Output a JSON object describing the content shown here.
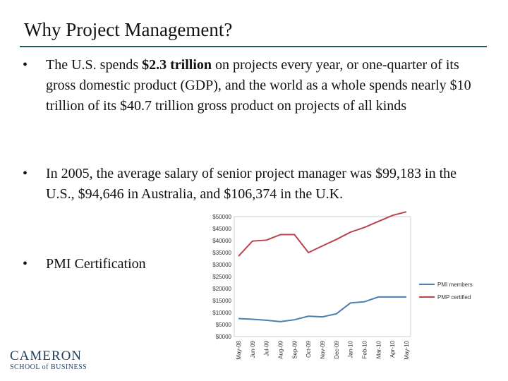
{
  "slide": {
    "title": "Why Project Management?",
    "bullets": [
      {
        "pre": "The U.S. spends ",
        "bold": "$2.3 trillion",
        "post": " on projects every year, or one-quarter of its gross domestic product (GDP), and the world as a whole spends nearly $10 trillion of its $40.7 trillion gross product on projects of all kinds"
      },
      {
        "text": "In 2005, the average salary of senior project manager was $99,183 in the U.S., $94,646 in Australia, and $106,374 in the U.K."
      },
      {
        "text": "PMI Certification"
      }
    ],
    "bullet_char": "•"
  },
  "logo": {
    "main": "CAMERON",
    "sub": "SCHOOL of BUSINESS"
  },
  "colors": {
    "rule": "#1e5b66",
    "pmi_members": "#4a7eb5",
    "pmp_certified": "#b8454a"
  },
  "chart_data": {
    "type": "line",
    "title": "",
    "categories": [
      "May-08",
      "Jun-09",
      "Jul-09",
      "Aug-09",
      "Sep-09",
      "Oct-09",
      "Nov-09",
      "Dec-09",
      "Jan-10",
      "Feb-10",
      "Mar-10",
      "Apr-10",
      "May-10"
    ],
    "y_tick_labels": [
      "$50000",
      "$45000",
      "$40000",
      "$35000",
      "$30000",
      "$25000",
      "$20000",
      "$15000",
      "$10000",
      "$5000",
      "$0000"
    ],
    "ylim": [
      0,
      50000
    ],
    "series": [
      {
        "name": "PMI members",
        "values": [
          7500,
          7200,
          6800,
          6200,
          7000,
          8500,
          8200,
          9500,
          14000,
          14500,
          16500,
          16500,
          16500
        ]
      },
      {
        "name": "PMP certified",
        "values": [
          33500,
          39800,
          40200,
          42500,
          42500,
          35000,
          37800,
          40500,
          43500,
          45500,
          48000,
          50500,
          52500
        ]
      }
    ],
    "legend": [
      "PMI members",
      "PMP certified"
    ]
  }
}
